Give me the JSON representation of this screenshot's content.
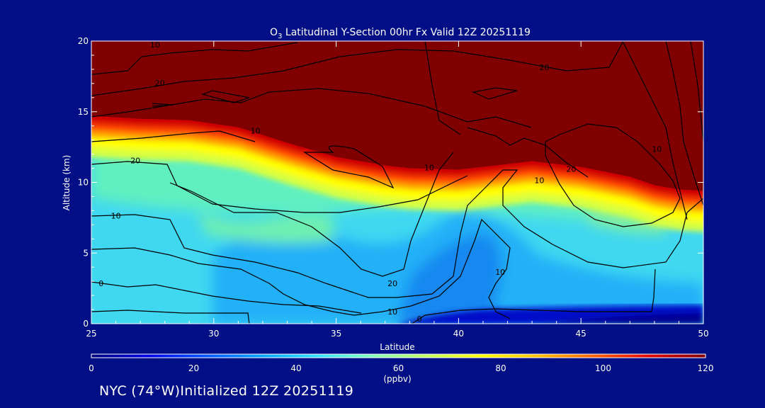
{
  "chart_data": {
    "type": "heatmap",
    "title": {
      "species": "O",
      "species_sub": "3",
      "rest": " Latitudinal Y-Section 00hr  Fx Valid 12Z 20251119"
    },
    "xlabel": "Latitude",
    "ylabel": "Altitude (km)",
    "xlim": [
      25,
      50
    ],
    "ylim": [
      0,
      20
    ],
    "xticks": [
      25,
      30,
      35,
      40,
      45,
      50
    ],
    "yticks": [
      0,
      5,
      10,
      15,
      20
    ],
    "colorbar": {
      "min": 0,
      "max": 120,
      "ticks": [
        0,
        20,
        40,
        60,
        80,
        100,
        120
      ],
      "label": "(ppbv)",
      "colors": [
        "#000080",
        "#0000e6",
        "#0050ff",
        "#00a0ff",
        "#30e0ff",
        "#80ffc0",
        "#c0ff60",
        "#ffff00",
        "#ffc000",
        "#ff6000",
        "#e00000",
        "#800000"
      ]
    },
    "tropopause_altitude_km": {
      "lat": [
        25,
        27,
        29,
        31,
        33,
        35,
        37,
        38,
        40,
        42,
        43,
        45,
        47,
        48,
        49,
        50
      ],
      "alt": [
        14.1,
        13.9,
        13.8,
        13.3,
        12.2,
        11.2,
        10.6,
        10.4,
        10.3,
        10.7,
        10.9,
        10.5,
        9.8,
        9.2,
        8.9,
        8.8
      ]
    },
    "contour_labels": [
      {
        "text": "10",
        "lat": 27.6,
        "alt": 19.7
      },
      {
        "text": "20",
        "lat": 27.8,
        "alt": 17.0
      },
      {
        "text": "20",
        "lat": 43.5,
        "alt": 18.1
      },
      {
        "text": "10",
        "lat": 31.7,
        "alt": 13.6
      },
      {
        "text": "10",
        "lat": 38.8,
        "alt": 11.0
      },
      {
        "text": "10",
        "lat": 43.3,
        "alt": 10.1
      },
      {
        "text": "20",
        "lat": 44.6,
        "alt": 10.9
      },
      {
        "text": "10",
        "lat": 48.1,
        "alt": 12.3
      },
      {
        "text": "20",
        "lat": 26.8,
        "alt": 11.5
      },
      {
        "text": "10",
        "lat": 26.0,
        "alt": 7.6
      },
      {
        "text": "0",
        "lat": 25.4,
        "alt": 2.8
      },
      {
        "text": "20",
        "lat": 37.3,
        "alt": 2.8
      },
      {
        "text": "10",
        "lat": 41.7,
        "alt": 3.6
      },
      {
        "text": "10",
        "lat": 37.3,
        "alt": 0.8
      },
      {
        "text": "0",
        "lat": 38.4,
        "alt": 0.3
      }
    ]
  },
  "footer": "NYC (74°W)Initialized 12Z 20251119"
}
